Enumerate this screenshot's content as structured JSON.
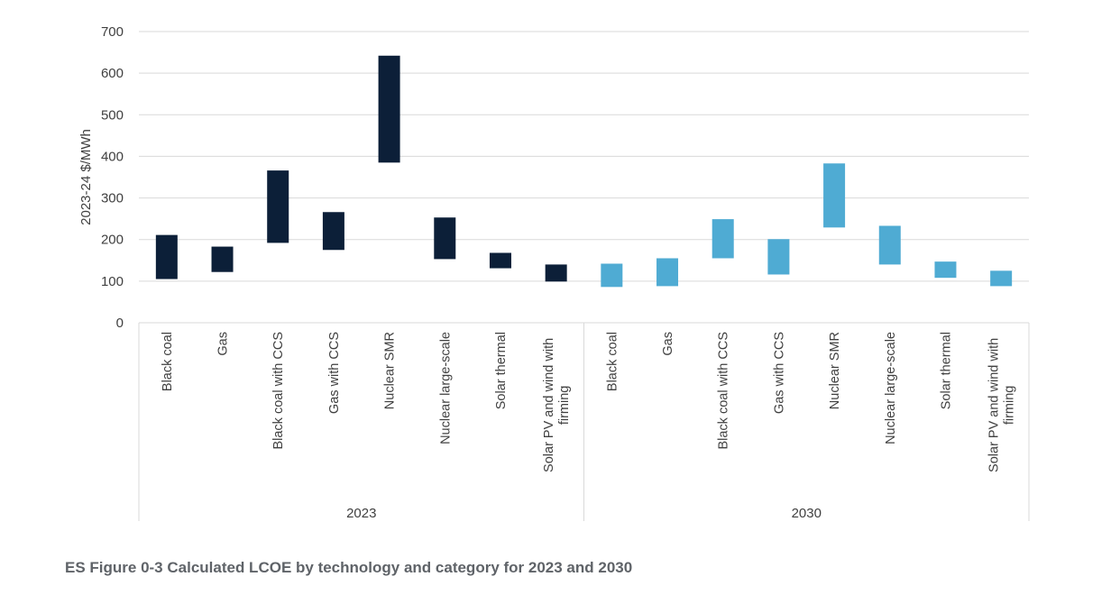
{
  "caption": "ES Figure 0-3 Calculated LCOE by technology and category for 2023 and 2030",
  "colors": {
    "2023": "#0c1f38",
    "2030": "#4fabd3",
    "grid": "#d9d9d9",
    "text": "#404040"
  },
  "chart_data": {
    "type": "bar",
    "subtype": "floating-range",
    "title": "",
    "xlabel": "",
    "ylabel": "2023-24 $/MWh",
    "ylim": [
      0,
      700
    ],
    "yticks": [
      0,
      100,
      200,
      300,
      400,
      500,
      600,
      700
    ],
    "grid": true,
    "legend": "none",
    "groups": [
      {
        "label": "2023",
        "categories": [
          "Black coal",
          "Gas",
          "Black coal with CCS",
          "Gas with CCS",
          "Nuclear SMR",
          "Nuclear large-scale",
          "Solar thermal",
          "Solar PV and wind with firming"
        ],
        "low": [
          105,
          122,
          192,
          175,
          385,
          153,
          131,
          99
        ],
        "high": [
          211,
          183,
          366,
          266,
          642,
          253,
          168,
          140
        ]
      },
      {
        "label": "2030",
        "categories": [
          "Black coal",
          "Gas",
          "Black coal with CCS",
          "Gas with CCS",
          "Nuclear SMR",
          "Nuclear large-scale",
          "Solar thermal",
          "Solar PV and wind with firming"
        ],
        "low": [
          86,
          88,
          155,
          116,
          229,
          140,
          108,
          88
        ],
        "high": [
          142,
          155,
          249,
          201,
          383,
          233,
          147,
          125
        ]
      }
    ]
  }
}
